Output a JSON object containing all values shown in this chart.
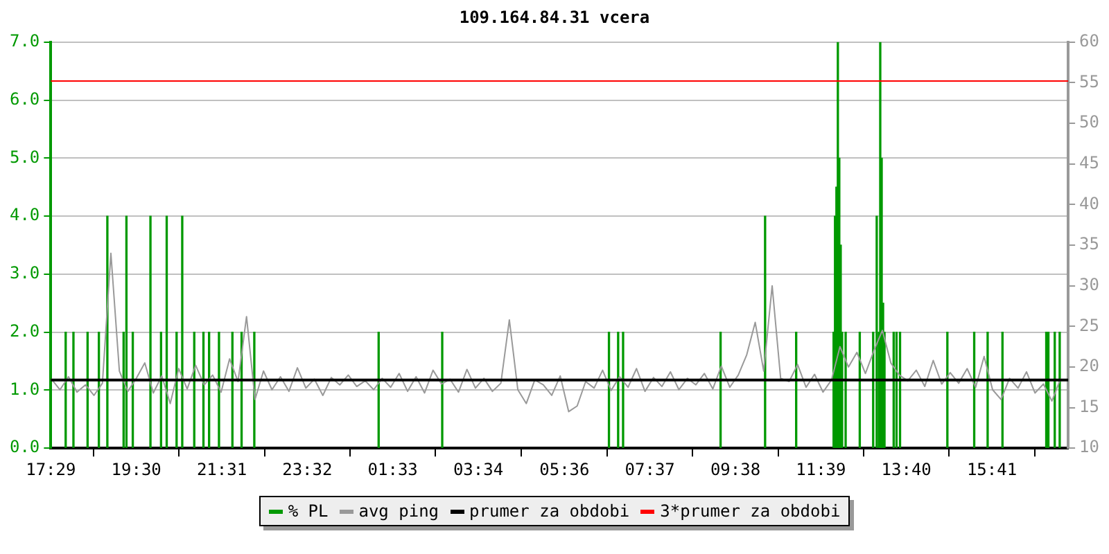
{
  "chart_data": {
    "type": "line",
    "title": "109.164.84.31 vcera",
    "xlim": [
      "--01-01T17:29",
      "--01-02T17:29"
    ],
    "xticks": [
      {
        "value": "--01-01T17:29",
        "label": "17:29"
      },
      {
        "value": "--01-01T19:30",
        "label": "19:30"
      },
      {
        "value": "--01-01T21:31",
        "label": "21:31"
      },
      {
        "value": "--01-01T23:32",
        "label": "23:32"
      },
      {
        "value": "--01-02T01:33",
        "label": "01:33"
      },
      {
        "value": "--01-02T03:34",
        "label": "03:34"
      },
      {
        "value": "--01-02T05:36",
        "label": "05:36"
      },
      {
        "value": "--01-02T07:37",
        "label": "07:37"
      },
      {
        "value": "--01-02T09:38",
        "label": "09:38"
      },
      {
        "value": "--01-02T11:39",
        "label": "11:39"
      },
      {
        "value": "--01-02T13:40",
        "label": "13:40"
      },
      {
        "value": "--01-02T15:41",
        "label": "15:41"
      }
    ],
    "ylim": [
      0,
      7
    ],
    "yticks": [
      {
        "value": 0,
        "label": "0.0"
      },
      {
        "value": 1,
        "label": "1.0"
      },
      {
        "value": 2,
        "label": "2.0"
      },
      {
        "value": 3,
        "label": "3.0"
      },
      {
        "value": 4,
        "label": "4.0"
      },
      {
        "value": 5,
        "label": "5.0"
      },
      {
        "value": 6,
        "label": "6.0"
      },
      {
        "value": 7,
        "label": "7.0"
      }
    ],
    "y2lim": [
      10,
      60
    ],
    "y2ticks": [
      10,
      15,
      20,
      25,
      30,
      35,
      40,
      45,
      50,
      55,
      60
    ],
    "grid": "y",
    "legend": "bottom",
    "series": [
      {
        "name": "% PL",
        "type": "bar",
        "color": "#009900",
        "x": [
          "--01-01T17:50",
          "--01-01T18:01",
          "--01-01T18:21",
          "--01-01T18:37",
          "--01-01T18:49",
          "--01-01T19:12",
          "--01-01T19:16",
          "--01-01T19:25",
          "--01-01T19:50",
          "--01-01T20:05",
          "--01-01T20:13",
          "--01-01T20:27",
          "--01-01T20:35",
          "--01-01T20:52",
          "--01-01T21:05",
          "--01-01T21:13",
          "--01-01T21:27",
          "--01-01T21:46",
          "--01-01T21:59",
          "--01-01T22:17",
          "--01-02T01:13",
          "--01-02T02:43",
          "--01-02T06:39",
          "--01-02T06:52",
          "--01-02T06:59",
          "--01-02T09:17",
          "--01-02T10:20",
          "--01-02T11:04",
          "--01-02T11:57",
          "--01-02T11:59",
          "--01-02T12:01",
          "--01-02T12:03",
          "--01-02T12:05",
          "--01-02T12:07",
          "--01-02T12:09",
          "--01-02T12:14",
          "--01-02T12:34",
          "--01-02T12:53",
          "--01-02T12:58",
          "--01-02T13:01",
          "--01-02T13:03",
          "--01-02T13:05",
          "--01-02T13:07",
          "--01-02T13:09",
          "--01-02T13:22",
          "--01-02T13:26",
          "--01-02T13:31",
          "--01-02T14:38",
          "--01-02T15:16",
          "--01-02T15:35",
          "--01-02T15:56",
          "--01-02T16:58",
          "--01-02T17:01",
          "--01-02T17:10",
          "--01-02T17:17"
        ],
        "values": [
          2,
          2,
          2,
          2,
          4,
          2,
          4,
          2,
          4,
          2,
          4,
          2,
          4,
          2,
          2,
          2,
          2,
          2,
          2,
          2,
          2,
          2,
          2,
          2,
          2,
          2,
          4,
          2,
          2,
          4,
          4.5,
          7,
          5,
          3.5,
          2,
          2,
          2,
          2,
          4,
          2,
          7,
          5,
          2.5,
          2,
          2,
          2,
          2,
          2,
          2,
          2,
          2,
          2,
          2,
          2,
          2
        ]
      },
      {
        "name": "avg ping",
        "axis": "y2",
        "color": "#999999",
        "x": [
          "--01-01T17:30",
          "--01-01T17:42",
          "--01-01T17:54",
          "--01-01T18:06",
          "--01-01T18:18",
          "--01-01T18:30",
          "--01-01T18:42",
          "--01-01T18:54",
          "--01-01T19:06",
          "--01-01T19:18",
          "--01-01T19:30",
          "--01-01T19:42",
          "--01-01T19:54",
          "--01-01T20:06",
          "--01-01T20:18",
          "--01-01T20:30",
          "--01-01T20:42",
          "--01-01T20:54",
          "--01-01T21:06",
          "--01-01T21:18",
          "--01-01T21:30",
          "--01-01T21:42",
          "--01-01T21:54",
          "--01-01T22:06",
          "--01-01T22:18",
          "--01-01T22:30",
          "--01-01T22:42",
          "--01-01T22:54",
          "--01-01T23:06",
          "--01-01T23:18",
          "--01-01T23:30",
          "--01-01T23:42",
          "--01-01T23:54",
          "--01-02T00:06",
          "--01-02T00:18",
          "--01-02T00:30",
          "--01-02T00:42",
          "--01-02T00:54",
          "--01-02T01:06",
          "--01-02T01:18",
          "--01-02T01:30",
          "--01-02T01:42",
          "--01-02T01:54",
          "--01-02T02:06",
          "--01-02T02:18",
          "--01-02T02:30",
          "--01-02T02:42",
          "--01-02T02:54",
          "--01-02T03:06",
          "--01-02T03:18",
          "--01-02T03:30",
          "--01-02T03:42",
          "--01-02T03:54",
          "--01-02T04:06",
          "--01-02T04:18",
          "--01-02T04:30",
          "--01-02T04:42",
          "--01-02T04:54",
          "--01-02T05:06",
          "--01-02T05:18",
          "--01-02T05:30",
          "--01-02T05:42",
          "--01-02T05:54",
          "--01-02T06:06",
          "--01-02T06:18",
          "--01-02T06:30",
          "--01-02T06:42",
          "--01-02T06:54",
          "--01-02T07:06",
          "--01-02T07:18",
          "--01-02T07:30",
          "--01-02T07:42",
          "--01-02T07:54",
          "--01-02T08:06",
          "--01-02T08:18",
          "--01-02T08:30",
          "--01-02T08:42",
          "--01-02T08:54",
          "--01-02T09:06",
          "--01-02T09:18",
          "--01-02T09:30",
          "--01-02T09:42",
          "--01-02T09:54",
          "--01-02T10:06",
          "--01-02T10:18",
          "--01-02T10:30",
          "--01-02T10:42",
          "--01-02T10:54",
          "--01-02T11:06",
          "--01-02T11:18",
          "--01-02T11:30",
          "--01-02T11:42",
          "--01-02T11:54",
          "--01-02T12:06",
          "--01-02T12:18",
          "--01-02T12:30",
          "--01-02T12:42",
          "--01-02T12:54",
          "--01-02T13:06",
          "--01-02T13:18",
          "--01-02T13:30",
          "--01-02T13:42",
          "--01-02T13:54",
          "--01-02T14:06",
          "--01-02T14:18",
          "--01-02T14:30",
          "--01-02T14:42",
          "--01-02T14:54",
          "--01-02T15:06",
          "--01-02T15:18",
          "--01-02T15:30",
          "--01-02T15:42",
          "--01-02T15:54",
          "--01-02T16:06",
          "--01-02T16:18",
          "--01-02T16:30",
          "--01-02T16:42",
          "--01-02T16:54",
          "--01-02T17:06",
          "--01-02T17:18"
        ],
        "values": [
          18.5,
          17.2,
          18.8,
          16.9,
          17.8,
          16.5,
          18.0,
          34.0,
          19.5,
          17.0,
          18.6,
          20.5,
          16.8,
          18.9,
          15.5,
          19.8,
          17.3,
          20.2,
          17.8,
          19.0,
          16.9,
          21.0,
          18.2,
          26.2,
          16.0,
          19.5,
          17.2,
          18.8,
          17.0,
          19.9,
          17.4,
          18.5,
          16.5,
          18.7,
          17.8,
          19.0,
          17.6,
          18.3,
          17.2,
          18.6,
          17.5,
          19.2,
          17.0,
          18.8,
          16.8,
          19.6,
          17.9,
          18.5,
          16.9,
          19.7,
          17.4,
          18.6,
          17.0,
          18.0,
          25.8,
          17.2,
          15.5,
          18.4,
          17.8,
          16.5,
          18.9,
          14.5,
          15.2,
          18.2,
          17.4,
          19.6,
          17.1,
          18.8,
          17.5,
          19.8,
          17.0,
          18.7,
          17.6,
          19.4,
          17.2,
          18.6,
          17.8,
          19.2,
          17.3,
          20.1,
          17.5,
          19.0,
          21.5,
          25.5,
          19.5,
          30.0,
          18.6,
          18.2,
          20.3,
          17.5,
          19.1,
          16.9,
          18.4,
          22.5,
          20.0,
          21.8,
          19.2,
          22.0,
          24.5,
          20.5,
          19.0,
          18.3,
          19.6,
          17.6,
          20.8,
          17.9,
          19.3,
          18.0,
          19.8,
          17.5,
          21.3,
          17.2,
          16.0,
          18.6,
          17.4,
          19.4,
          16.8,
          17.9,
          15.8,
          18.5
        ]
      }
    ],
    "ref_lines": [
      {
        "axis": "y2",
        "value": 18.4,
        "label": "prumer za obdobi",
        "color": "#000000"
      },
      {
        "axis": "y2",
        "value": 55.2,
        "label": "3*prumer za obdobi",
        "color": "#ff0000"
      }
    ]
  }
}
